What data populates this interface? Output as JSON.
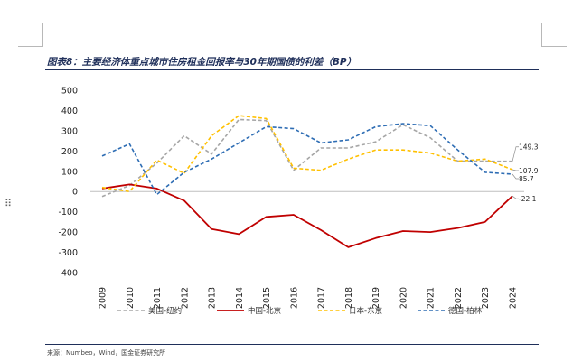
{
  "title": "图表8：主要经济体重点城市住房租金回报率与30年期国债的利差（BP）",
  "source": "来源：Numbeo，Wind，国金证券研究所",
  "chart_data": {
    "type": "line",
    "x": [
      "2009",
      "2010",
      "2011",
      "2012",
      "2013",
      "2014",
      "2015",
      "2016",
      "2017",
      "2018",
      "2019",
      "2020",
      "2021",
      "2022",
      "2023",
      "2024"
    ],
    "ylim": [
      -400,
      500
    ],
    "yticks": [
      500,
      400,
      300,
      200,
      100,
      0,
      -100,
      -200,
      -300,
      -400
    ],
    "grid": false,
    "legend_position": "bottom",
    "series": [
      {
        "name": "美国-纽约",
        "color": "#a6a6a6",
        "dash": "dashed",
        "values": [
          -25,
          30,
          140,
          275,
          185,
          355,
          350,
          105,
          215,
          215,
          245,
          330,
          265,
          150,
          150,
          149.3
        ]
      },
      {
        "name": "中国-北京",
        "color": "#c00000",
        "dash": "solid",
        "values": [
          15,
          35,
          15,
          -45,
          -185,
          -210,
          -125,
          -115,
          -190,
          -275,
          -230,
          -195,
          -200,
          -180,
          -150,
          -22.1
        ]
      },
      {
        "name": "日本-东京",
        "color": "#ffc000",
        "dash": "dashed",
        "values": [
          20,
          0,
          155,
          90,
          275,
          375,
          360,
          115,
          105,
          160,
          205,
          205,
          190,
          150,
          160,
          107.9
        ]
      },
      {
        "name": "德国-柏林",
        "color": "#2e6db4",
        "dash": "dashed",
        "values": [
          175,
          235,
          -15,
          95,
          160,
          240,
          320,
          310,
          240,
          255,
          320,
          335,
          325,
          205,
          95,
          85.7
        ]
      }
    ],
    "end_labels": [
      "149.3",
      "107.9",
      "85.7",
      "-22.1"
    ]
  }
}
